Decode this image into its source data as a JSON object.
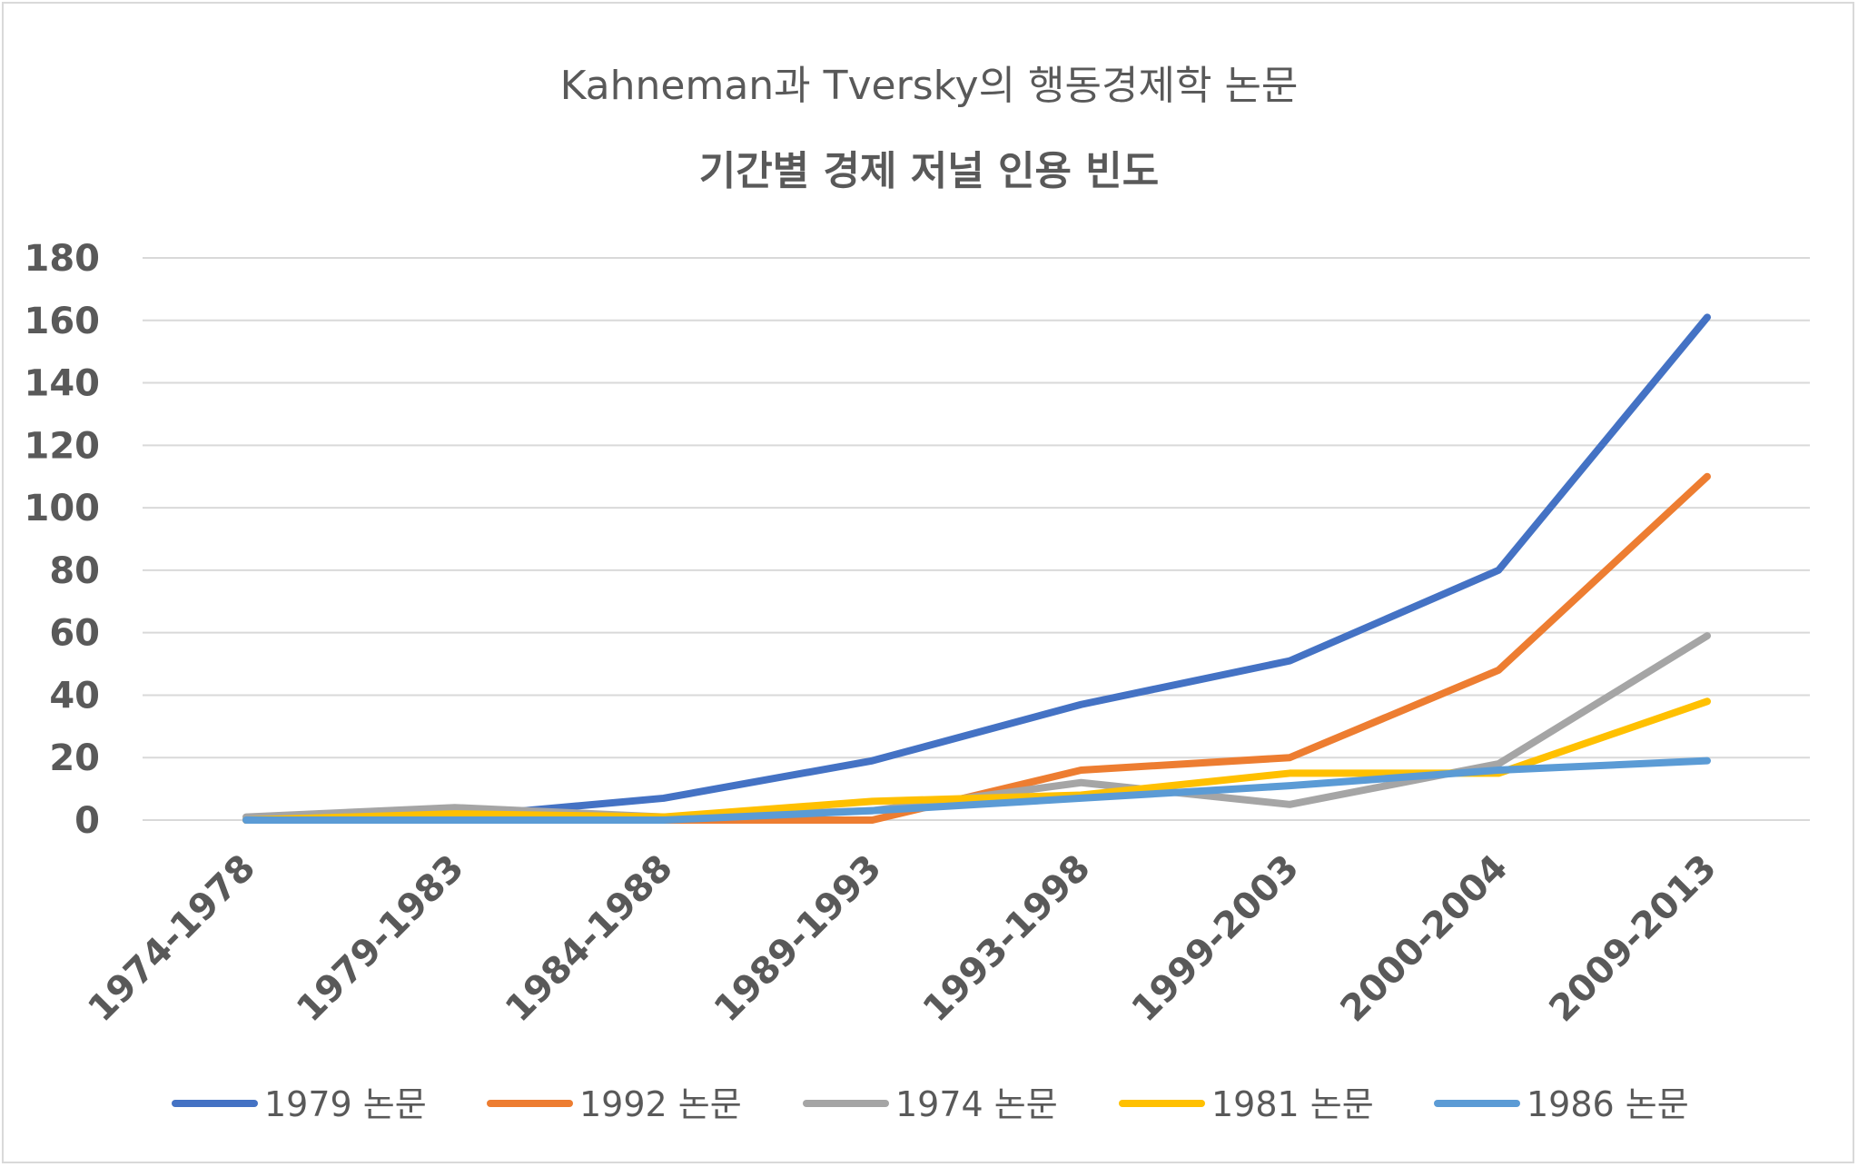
{
  "chart_data": {
    "type": "line",
    "title_line1": "Kahneman과 Tversky의 행동경제학 논문",
    "title_line2": "기간별 경제 저널 인용 빈도",
    "categories": [
      "1974-1978",
      "1979-1983",
      "1984-1988",
      "1989-1993",
      "1993-1998",
      "1999-2003",
      "2000-2004",
      "2009-2013"
    ],
    "yticks": [
      "0",
      "20",
      "40",
      "60",
      "80",
      "100",
      "120",
      "140",
      "160",
      "180"
    ],
    "ylim": [
      0,
      180
    ],
    "grid": true,
    "legend_position": "bottom",
    "series": [
      {
        "name": "1979 논문",
        "color": "#4472c4",
        "values": [
          0,
          1,
          7,
          19,
          37,
          51,
          80,
          161
        ]
      },
      {
        "name": "1992 논문",
        "color": "#ed7d31",
        "values": [
          0,
          0,
          0,
          0,
          16,
          20,
          48,
          110
        ]
      },
      {
        "name": "1974 논문",
        "color": "#a5a5a5",
        "values": [
          1,
          4,
          1,
          3,
          12,
          5,
          18,
          59
        ]
      },
      {
        "name": "1981 논문",
        "color": "#ffc000",
        "values": [
          0,
          2,
          1,
          6,
          8,
          15,
          15,
          38
        ]
      },
      {
        "name": "1986 논문",
        "color": "#5b9bd5",
        "values": [
          0,
          0,
          0,
          3,
          7,
          11,
          16,
          19
        ]
      }
    ]
  }
}
